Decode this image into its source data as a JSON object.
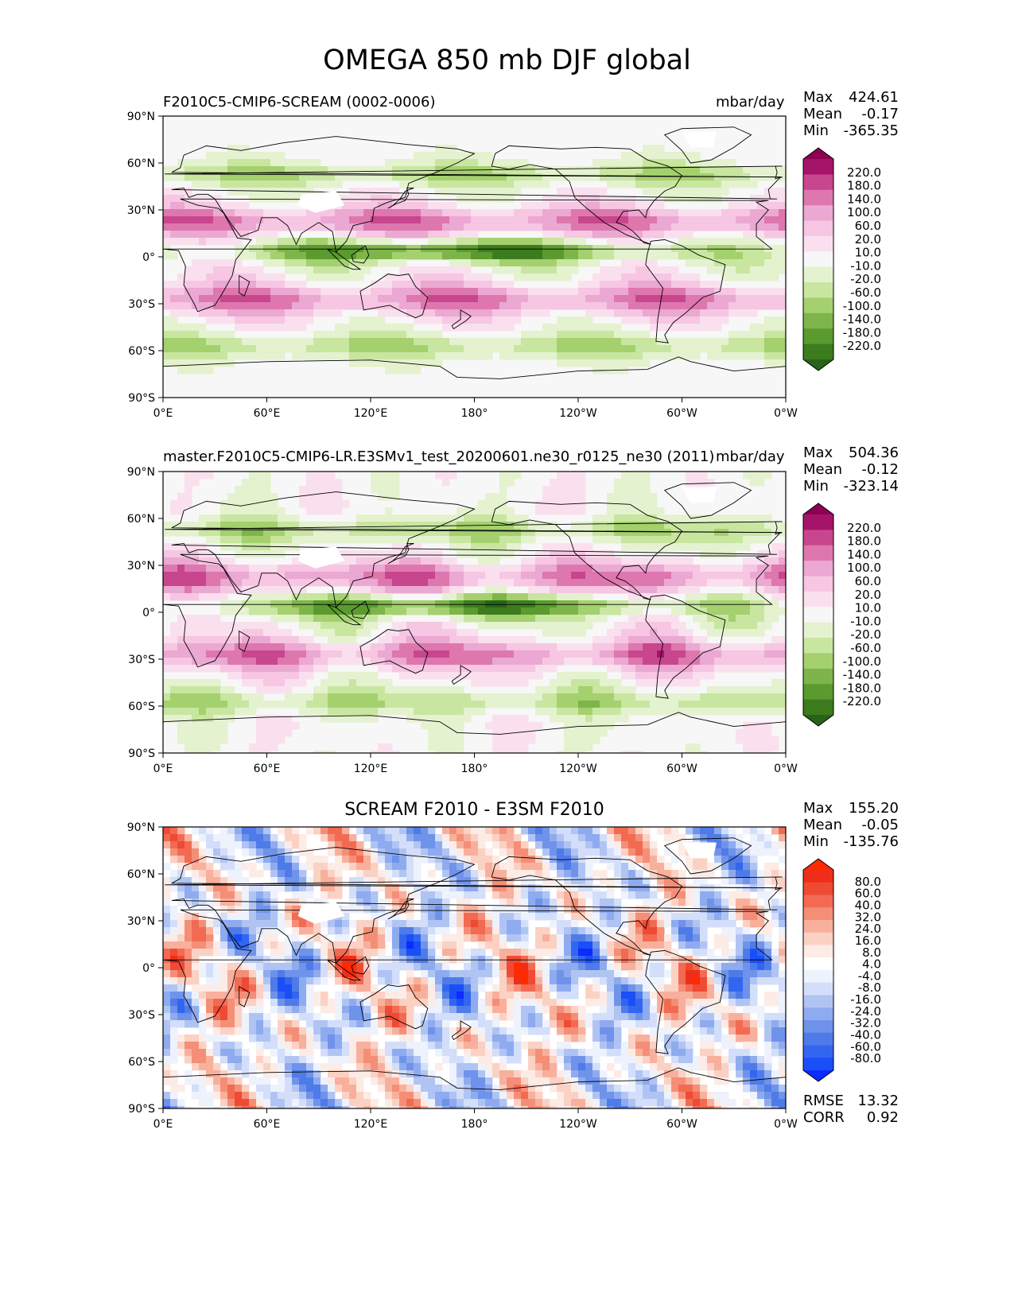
{
  "title": "OMEGA 850 mb DJF global",
  "stat_labels": {
    "max": "Max",
    "mean": "Mean",
    "min": "Min",
    "rmse": "RMSE",
    "corr": "CORR"
  },
  "lat_ticks": [
    "90°N",
    "60°N",
    "30°N",
    "0°",
    "30°S",
    "60°S",
    "90°S"
  ],
  "lon_ticks": [
    "0°E",
    "60°E",
    "120°E",
    "180°",
    "120°W",
    "60°W",
    "0°W"
  ],
  "colors": {
    "test_levels": [
      "#276419",
      "#3c7c1e",
      "#5a9a2e",
      "#7eb54a",
      "#a4d06e",
      "#c8e6a0",
      "#e4f2cf",
      "#f7f7f7",
      "#fae0ee",
      "#f6c6e2",
      "#eba8d2",
      "#de77ae",
      "#c8468e",
      "#a6146a",
      "#8e0152"
    ],
    "diff_levels": [
      "#0a2cff",
      "#1a4ef7",
      "#3366f0",
      "#4f7be8",
      "#6f93ea",
      "#8fabef",
      "#b0c4f4",
      "#d3defa",
      "#eef2fd",
      "#ffffff",
      "#fdebe6",
      "#fbd1c4",
      "#f8b09c",
      "#f58e77",
      "#f26a52",
      "#ef4a33",
      "#ef2e1a",
      "#ff2a00"
    ]
  },
  "chart_data": [
    {
      "type": "heatmap",
      "title": "F2010C5-CMIP6-SCREAM (0002-0006)",
      "units": "mbar/day",
      "stats": {
        "max": "424.61",
        "mean": "-0.17",
        "min": "-365.35"
      },
      "colorbar_levels": [
        "220.0",
        "180.0",
        "140.0",
        "100.0",
        "60.0",
        "20.0",
        "10.0",
        "-10.0",
        "-20.0",
        "-60.0",
        "-100.0",
        "-140.0",
        "-180.0",
        "-220.0"
      ],
      "x_range": [
        0,
        360
      ],
      "y_range": [
        -90,
        90
      ]
    },
    {
      "type": "heatmap",
      "title": "master.F2010C5-CMIP6-LR.E3SMv1_test_20200601.ne30_r0125_ne30 (2011)",
      "units": "mbar/day",
      "stats": {
        "max": "504.36",
        "mean": "-0.12",
        "min": "-323.14"
      },
      "colorbar_levels": [
        "220.0",
        "180.0",
        "140.0",
        "100.0",
        "60.0",
        "20.0",
        "10.0",
        "-10.0",
        "-20.0",
        "-60.0",
        "-100.0",
        "-140.0",
        "-180.0",
        "-220.0"
      ],
      "x_range": [
        0,
        360
      ],
      "y_range": [
        -90,
        90
      ]
    },
    {
      "type": "heatmap",
      "title": "SCREAM F2010 - E3SM F2010",
      "stats": {
        "max": "155.20",
        "mean": "-0.05",
        "min": "-135.76",
        "rmse": "13.32",
        "corr": "0.92"
      },
      "colorbar_levels": [
        "80.0",
        "60.0",
        "40.0",
        "32.0",
        "24.0",
        "16.0",
        "8.0",
        "4.0",
        "-4.0",
        "-8.0",
        "-16.0",
        "-24.0",
        "-32.0",
        "-40.0",
        "-60.0",
        "-80.0"
      ],
      "x_range": [
        0,
        360
      ],
      "y_range": [
        -90,
        90
      ]
    }
  ]
}
